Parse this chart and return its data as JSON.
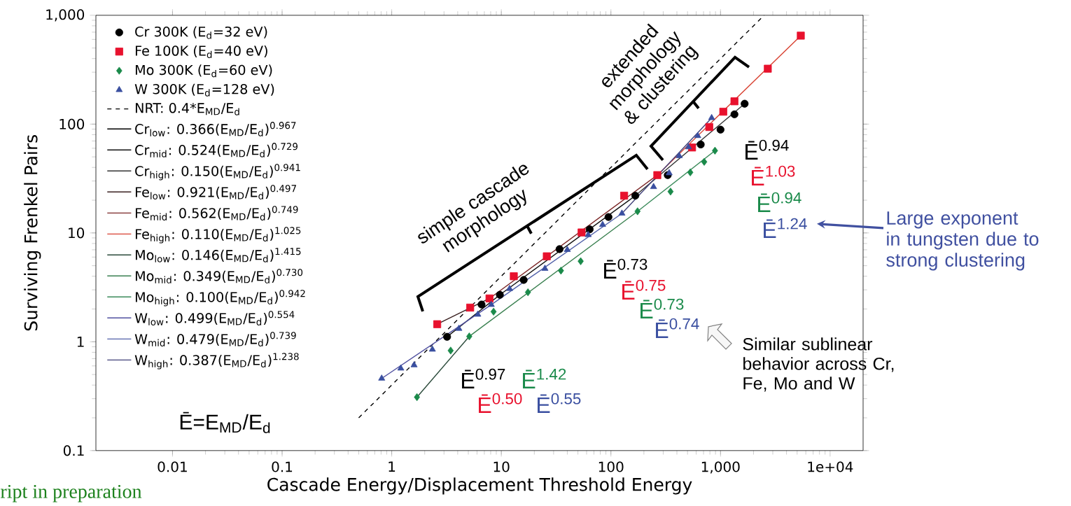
{
  "chart_data": {
    "type": "scatter",
    "xlabel": "Cascade Energy/Displacement Threshold Energy",
    "ylabel": "Surviving Frenkel Pairs",
    "log": "xy",
    "legend": "top left",
    "xlim": [
      0.002,
      20000
    ],
    "ylim": [
      0.1,
      1000
    ],
    "xticks": [
      0.01,
      0.1,
      1,
      10,
      100,
      {
        "value": 1000,
        "label": "1,000"
      },
      {
        "value": 10000,
        "label": "1e+04"
      }
    ],
    "yticks": [
      0.1,
      1,
      10,
      100,
      {
        "value": 1000,
        "label": "1,000"
      }
    ],
    "series": [
      {
        "name": "Cr 300K (E$_{d}$=32 eV)",
        "marker": "circle",
        "color": "#000000",
        "x": [
          3.2,
          6.6,
          9.7,
          16,
          34,
          64,
          95,
          167,
          330,
          660,
          1000,
          1340,
          1660
        ],
        "values": [
          1.11,
          2.2,
          2.7,
          3.7,
          7.1,
          10.8,
          14,
          22,
          34,
          65,
          89,
          123,
          154
        ]
      },
      {
        "name": "Fe 100K (E$_{d}$=40 eV)",
        "marker": "square",
        "color": "#e8112d",
        "x": [
          2.6,
          5.2,
          7.8,
          13,
          26,
          54,
          132,
          265,
          550,
          790,
          1060,
          1340,
          2700,
          5400
        ],
        "values": [
          1.45,
          2.06,
          2.5,
          4.0,
          6.1,
          10.1,
          22,
          34,
          61,
          94,
          130,
          162,
          323,
          650
        ]
      },
      {
        "name": "Mo 300K (E$_{d}$=60 eV)",
        "marker": "diamond",
        "color": "#1a8a4a",
        "x": [
          1.7,
          3.45,
          5.1,
          8.5,
          17.5,
          35,
          53,
          175,
          350,
          530,
          710,
          890
        ],
        "values": [
          0.31,
          0.83,
          1.12,
          1.89,
          2.85,
          4.5,
          5.5,
          15.8,
          24,
          36,
          45,
          57
        ]
      },
      {
        "name": "W 300K (E$_{d}$=128 eV)",
        "marker": "triangle",
        "color": "#3a4fa0",
        "x": [
          0.81,
          1.21,
          1.6,
          2.35,
          4.1,
          6.1,
          8.1,
          11.9,
          25,
          40,
          62,
          84,
          126,
          245,
          340,
          420,
          510,
          620,
          830
        ],
        "values": [
          0.46,
          0.57,
          0.61,
          0.85,
          1.32,
          1.78,
          2.19,
          3.07,
          4.7,
          7.0,
          9.6,
          11.9,
          15.1,
          26.5,
          35.5,
          51,
          61.5,
          78,
          114
        ]
      },
      {
        "name": "NRT: 0.4*E$_{MD}$/E$_{d}$",
        "type": "line",
        "line_style": "dashed",
        "color": "#000000",
        "x": [
          0.5,
          2500
        ],
        "values": [
          0.2,
          1000
        ]
      },
      {
        "name": "Cr$_{low}$: 0.366(E$_{MD}$/E$_{d}$)$^{0.967}$",
        "type": "line",
        "color": "#000000",
        "x": [
          3.2,
          9.7
        ],
        "values": [
          1.11,
          2.7
        ]
      },
      {
        "name": "Cr$_{mid}$: 0.524(E$_{MD}$/E$_{d}$)$^{0.729}$",
        "type": "line",
        "color": "#111111",
        "x": [
          9.7,
          167
        ],
        "values": [
          2.7,
          22
        ]
      },
      {
        "name": "Cr$_{high}$: 0.150(E$_{MD}$/E$_{d}$)$^{0.941}$",
        "type": "line",
        "color": "#333333",
        "x": [
          167,
          1660
        ],
        "values": [
          22,
          154
        ]
      },
      {
        "name": "Fe$_{low}$: 0.921(E$_{MD}$/E$_{d}$)$^{0.497}$",
        "type": "line",
        "color": "#3a2020",
        "x": [
          2.6,
          7.8
        ],
        "values": [
          1.45,
          2.5
        ]
      },
      {
        "name": "Fe$_{mid}$: 0.562(E$_{MD}$/E$_{d}$)$^{0.749}$",
        "type": "line",
        "color": "#7a2525",
        "x": [
          7.8,
          265
        ],
        "values": [
          2.5,
          34
        ]
      },
      {
        "name": "Fe$_{high}$: 0.110(E$_{MD}$/E$_{d}$)$^{1.025}$",
        "type": "line",
        "color": "#d84030",
        "x": [
          265,
          5400
        ],
        "values": [
          34,
          650
        ]
      },
      {
        "name": "Mo$_{low}$: 0.146(E$_{MD}$/E$_{d}$)$^{1.415}$",
        "type": "line",
        "color": "#2a4a3a",
        "x": [
          1.7,
          5.1
        ],
        "values": [
          0.31,
          1.12
        ]
      },
      {
        "name": "Mo$_{mid}$: 0.349(E$_{MD}$/E$_{d}$)$^{0.730}$",
        "type": "line",
        "color": "#3a8050",
        "x": [
          5.1,
          175
        ],
        "values": [
          1.12,
          15.8
        ]
      },
      {
        "name": "Mo$_{high}$: 0.100(E$_{MD}$/E$_{d}$)$^{0.942}$",
        "type": "line",
        "color": "#3a8a5a",
        "x": [
          175,
          890
        ],
        "values": [
          15.8,
          57
        ]
      },
      {
        "name": "W$_{low}$: 0.499(E$_{MD}$/E$_{d}$)$^{0.554}$",
        "type": "line",
        "color": "#5050a0",
        "x": [
          0.81,
          8.1
        ],
        "values": [
          0.46,
          2.19
        ]
      },
      {
        "name": "W$_{mid}$: 0.479(E$_{MD}$/E$_{d}$)$^{0.739}$",
        "type": "line",
        "color": "#5060a8",
        "x": [
          8.1,
          126
        ],
        "values": [
          2.19,
          15.1
        ]
      },
      {
        "name": "W$_{high}$: 0.387(E$_{MD}$/E$_{d}$)$^{1.238}$",
        "type": "line",
        "color": "#404078",
        "x": [
          126,
          830
        ],
        "values": [
          15.1,
          114
        ]
      }
    ],
    "annotations": [
      "simple cascade morphology",
      "extended morphology & clustering",
      "Ē=E$_{MD}$/E$_{d}$",
      "Similar sublinear behavior across Cr, Fe, Mo and W",
      "Large exponent in tungsten due to strong clustering",
      "ript in preparation",
      "Ē$^{0.97}$",
      "Ē$^{0.50}$",
      "Ē$^{1.42}$",
      "Ē$^{0.55}$",
      "Ē$^{0.73}$",
      "Ē$^{0.75}$",
      "Ē$^{0.73}$",
      "Ē$^{0.74}$",
      "Ē$^{0.94}$",
      "Ē$^{1.03}$",
      "Ē$^{0.94}$",
      "Ē$^{1.24}$"
    ]
  }
}
